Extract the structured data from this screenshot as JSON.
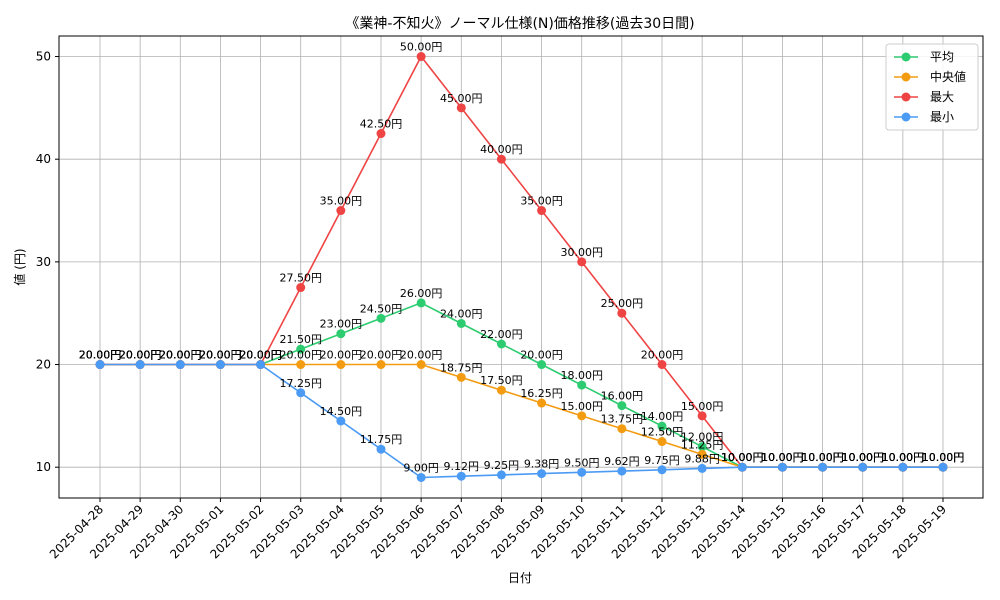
{
  "chart_data": {
    "type": "line",
    "title": "《業神-不知火》ノーマル仕様(N)価格推移(過去30日間)",
    "xlabel": "日付",
    "ylabel": "値 (円)",
    "ylim": [
      7,
      52
    ],
    "yticks": [
      10,
      20,
      30,
      40,
      50
    ],
    "grid": true,
    "legend_position": "top-right",
    "value_suffix": "円",
    "categories": [
      "2025-04-28",
      "2025-04-29",
      "2025-04-30",
      "2025-05-01",
      "2025-05-02",
      "2025-05-03",
      "2025-05-04",
      "2025-05-05",
      "2025-05-06",
      "2025-05-07",
      "2025-05-08",
      "2025-05-09",
      "2025-05-10",
      "2025-05-11",
      "2025-05-12",
      "2025-05-13",
      "2025-05-14",
      "2025-05-15",
      "2025-05-16",
      "2025-05-17",
      "2025-05-18",
      "2025-05-19"
    ],
    "series": [
      {
        "name": "平均",
        "color": "#2ecc71",
        "values": [
          20,
          20,
          20,
          20,
          20,
          21.5,
          23,
          24.5,
          26,
          24,
          22,
          20,
          18,
          16,
          14,
          12,
          10,
          10,
          10,
          10,
          10,
          10
        ]
      },
      {
        "name": "中央値",
        "color": "#f39c12",
        "values": [
          20,
          20,
          20,
          20,
          20,
          20,
          20,
          20,
          20,
          18.75,
          17.5,
          16.25,
          15,
          13.75,
          12.5,
          11.25,
          10,
          10,
          10,
          10,
          10,
          10
        ]
      },
      {
        "name": "最大",
        "color": "#ef4444",
        "values": [
          20,
          20,
          20,
          20,
          20,
          27.5,
          35,
          42.5,
          50,
          45,
          40,
          35,
          30,
          25,
          20,
          15,
          10,
          10,
          10,
          10,
          10,
          10
        ]
      },
      {
        "name": "最小",
        "color": "#4b9bf5",
        "values": [
          20,
          20,
          20,
          20,
          20,
          17.25,
          14.5,
          11.75,
          9,
          9.12,
          9.25,
          9.38,
          9.5,
          9.62,
          9.75,
          9.88,
          10,
          10,
          10,
          10,
          10,
          10
        ]
      }
    ]
  }
}
